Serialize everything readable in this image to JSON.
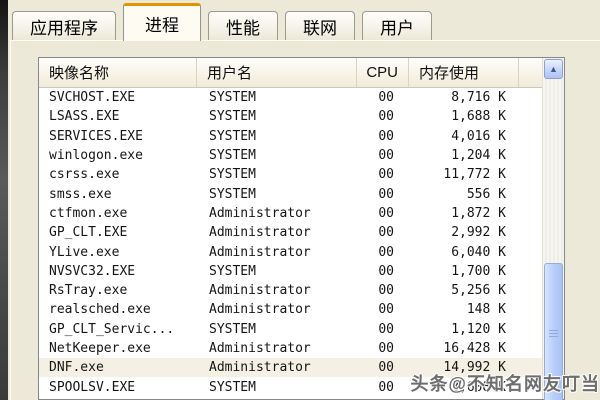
{
  "tabs": [
    {
      "label": "应用程序",
      "active": false
    },
    {
      "label": "进程",
      "active": true
    },
    {
      "label": "性能",
      "active": false
    },
    {
      "label": "联网",
      "active": false
    },
    {
      "label": "用户",
      "active": false
    }
  ],
  "process_table": {
    "columns": [
      {
        "label": "映像名称"
      },
      {
        "label": "用户名"
      },
      {
        "label": "CPU"
      },
      {
        "label": "内存使用"
      }
    ],
    "rows": [
      {
        "image": "SVCHOST.EXE",
        "user": "SYSTEM",
        "cpu": "00",
        "mem": "8,716 K",
        "highlighted": false
      },
      {
        "image": "LSASS.EXE",
        "user": "SYSTEM",
        "cpu": "00",
        "mem": "1,688 K",
        "highlighted": false
      },
      {
        "image": "SERVICES.EXE",
        "user": "SYSTEM",
        "cpu": "00",
        "mem": "4,016 K",
        "highlighted": false
      },
      {
        "image": "winlogon.exe",
        "user": "SYSTEM",
        "cpu": "00",
        "mem": "1,204 K",
        "highlighted": false
      },
      {
        "image": "csrss.exe",
        "user": "SYSTEM",
        "cpu": "00",
        "mem": "11,772 K",
        "highlighted": false
      },
      {
        "image": "smss.exe",
        "user": "SYSTEM",
        "cpu": "00",
        "mem": "556 K",
        "highlighted": false
      },
      {
        "image": "ctfmon.exe",
        "user": "Administrator",
        "cpu": "00",
        "mem": "1,872 K",
        "highlighted": false
      },
      {
        "image": "GP_CLT.EXE",
        "user": "Administrator",
        "cpu": "00",
        "mem": "2,992 K",
        "highlighted": false
      },
      {
        "image": "YLive.exe",
        "user": "Administrator",
        "cpu": "00",
        "mem": "6,040 K",
        "highlighted": false
      },
      {
        "image": "NVSVC32.EXE",
        "user": "SYSTEM",
        "cpu": "00",
        "mem": "1,700 K",
        "highlighted": false
      },
      {
        "image": "RsTray.exe",
        "user": "Administrator",
        "cpu": "00",
        "mem": "5,256 K",
        "highlighted": false
      },
      {
        "image": "realsched.exe",
        "user": "Administrator",
        "cpu": "00",
        "mem": "148 K",
        "highlighted": false
      },
      {
        "image": "GP_CLT_Servic...",
        "user": "SYSTEM",
        "cpu": "00",
        "mem": "1,120 K",
        "highlighted": false
      },
      {
        "image": "NetKeeper.exe",
        "user": "Administrator",
        "cpu": "00",
        "mem": "16,428 K",
        "highlighted": false
      },
      {
        "image": "DNF.exe",
        "user": "Administrator",
        "cpu": "00",
        "mem": "14,992 K",
        "highlighted": true
      },
      {
        "image": "SPOOLSV.EXE",
        "user": "SYSTEM",
        "cpu": "00",
        "mem": "3,608 K",
        "highlighted": false
      }
    ]
  },
  "scrollbar": {
    "up_icon": "▲"
  },
  "watermark": {
    "text": "头条@不知名网友叮当"
  },
  "colors": {
    "panel_bg": "#ece9d8",
    "active_tab_accent": "#e59400",
    "row_highlight": "#f4f0e3",
    "scrollbar_blue": "#b7ccf8",
    "edge_strip": "#3c3c3c"
  }
}
